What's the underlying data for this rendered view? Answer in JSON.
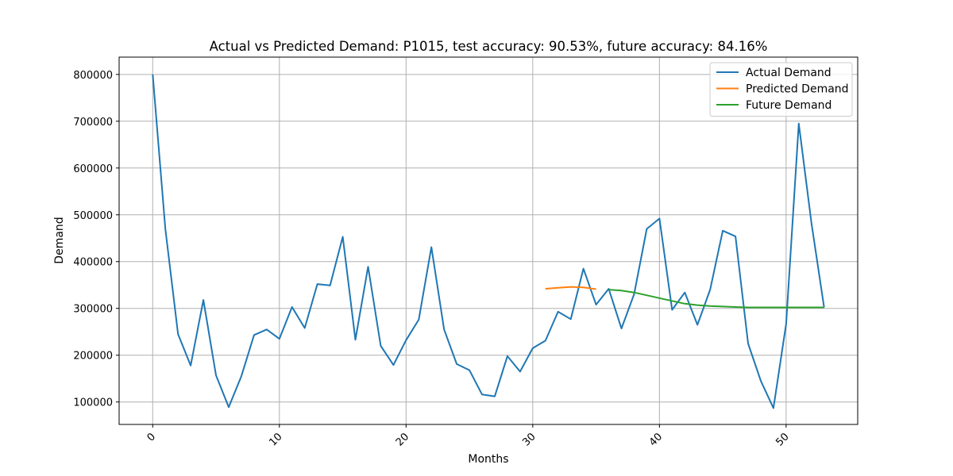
{
  "chart_data": {
    "type": "line",
    "title": "Actual vs Predicted Demand: P1015, test accuracy: 90.53%, future accuracy: 84.16%",
    "xlabel": "Months",
    "ylabel": "Demand",
    "xlim": [
      -2.65,
      55.65
    ],
    "ylim": [
      52000,
      837000
    ],
    "xticks": [
      0,
      10,
      20,
      30,
      40,
      50
    ],
    "yticks": [
      100000,
      200000,
      300000,
      400000,
      500000,
      600000,
      700000,
      800000
    ],
    "grid": true,
    "legend_position": "upper right",
    "series": [
      {
        "name": "Actual Demand",
        "color": "#1f77b4",
        "x": [
          0,
          1,
          2,
          3,
          4,
          5,
          6,
          7,
          8,
          9,
          10,
          11,
          12,
          13,
          14,
          15,
          16,
          17,
          18,
          19,
          20,
          21,
          22,
          23,
          24,
          25,
          26,
          27,
          28,
          29,
          30,
          31,
          32,
          33,
          34,
          35,
          36,
          37,
          38,
          39,
          40,
          41,
          42,
          43,
          44,
          45,
          46,
          47,
          48,
          49,
          50,
          51,
          52,
          53
        ],
        "values": [
          800000,
          470000,
          245000,
          178000,
          318000,
          157000,
          89000,
          155000,
          243000,
          255000,
          235000,
          303000,
          258000,
          352000,
          349000,
          453000,
          233000,
          389000,
          220000,
          179000,
          232000,
          276000,
          431000,
          255000,
          181000,
          168000,
          116000,
          112000,
          198000,
          165000,
          215000,
          231000,
          293000,
          277000,
          385000,
          308000,
          342000,
          257000,
          330000,
          470000,
          492000,
          297000,
          334000,
          265000,
          340000,
          466000,
          454000,
          225000,
          145000,
          87000,
          267000,
          695000,
          482000,
          302000
        ]
      },
      {
        "name": "Predicted Demand",
        "color": "#ff7f0e",
        "x": [
          31,
          32,
          33,
          34,
          35
        ],
        "values": [
          342000,
          344000,
          346000,
          345000,
          341000
        ]
      },
      {
        "name": "Future Demand",
        "color": "#2ca02c",
        "x": [
          36,
          37,
          38,
          39,
          40,
          41,
          42,
          43,
          44,
          45,
          46,
          47,
          48,
          49,
          50,
          51,
          52,
          53
        ],
        "values": [
          340000,
          338000,
          334000,
          328000,
          322000,
          316000,
          310000,
          307000,
          305000,
          304000,
          303000,
          302000,
          302000,
          302000,
          302000,
          302000,
          302000,
          302000
        ]
      }
    ]
  }
}
